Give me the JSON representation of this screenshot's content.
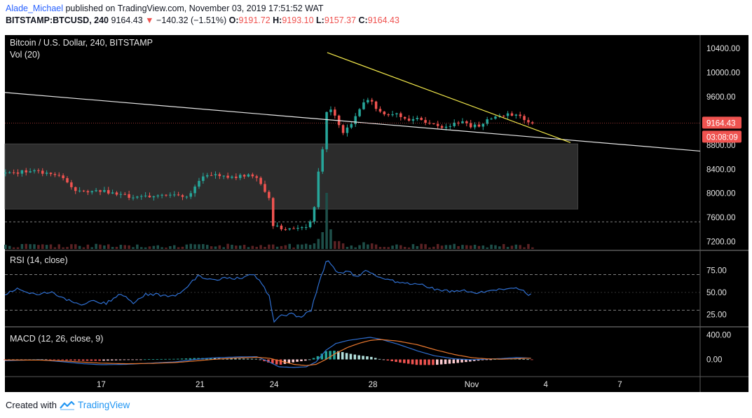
{
  "header": {
    "author": "Alade_Michael",
    "published_text": "published on TradingView.com, November 03, 2019 17:51:52 WAT",
    "symbol": "BITSTAMP:BTCUSD, 240",
    "last": "9164.43",
    "change_arrow": "▼",
    "change": "−140.32 (−1.51%)",
    "o_label": "O:",
    "o_value": "9191.72",
    "h_label": "H:",
    "h_value": "9193.10",
    "l_label": "L:",
    "l_value": "9157.37",
    "c_label": "C:",
    "c_value": "9164.43"
  },
  "chart_data": {
    "type": "candlestick",
    "title": "Bitcoin / U.S. Dollar, 240, BITSTAMP",
    "volume_label": "Vol (20)",
    "y_ticks": [
      "10400.00",
      "10000.00",
      "9600.00",
      "8800.00",
      "8400.00",
      "8000.00",
      "7600.00",
      "7200.00"
    ],
    "price_tick_values": [
      10400,
      10000,
      9600,
      8800,
      8400,
      8000,
      7600,
      7200
    ],
    "price_range": [
      7080,
      10620
    ],
    "last_price_label": "9164.43",
    "countdown_label": "03:08:09",
    "x_ticks": [
      "17",
      "21",
      "24",
      "28",
      "Nov",
      "4",
      "7"
    ],
    "x_tick_days": [
      17,
      21,
      24,
      28,
      32,
      35,
      38
    ],
    "x_range_days": [
      13.1,
      41.25
    ],
    "candle_days_start": 13.125,
    "candle_interval_days": 0.1667,
    "anchors": [
      [
        13.1,
        8330
      ],
      [
        14.2,
        8370
      ],
      [
        15.3,
        8280
      ],
      [
        16.0,
        8040
      ],
      [
        17.0,
        8040
      ],
      [
        18.2,
        7940
      ],
      [
        18.9,
        7950
      ],
      [
        19.8,
        7990
      ],
      [
        20.5,
        7950
      ],
      [
        21.0,
        8250
      ],
      [
        21.6,
        8300
      ],
      [
        22.4,
        8270
      ],
      [
        23.0,
        8300
      ],
      [
        23.3,
        8280
      ],
      [
        23.6,
        8040
      ],
      [
        23.8,
        7940
      ],
      [
        23.95,
        7480
      ],
      [
        24.3,
        7430
      ],
      [
        24.8,
        7420
      ],
      [
        25.4,
        7460
      ],
      [
        25.6,
        7690
      ],
      [
        25.8,
        8380
      ],
      [
        25.95,
        8700
      ],
      [
        26.05,
        8800
      ],
      [
        26.15,
        9520
      ],
      [
        26.3,
        9360
      ],
      [
        26.55,
        9250
      ],
      [
        26.75,
        9000
      ],
      [
        27.1,
        9120
      ],
      [
        27.6,
        9500
      ],
      [
        27.9,
        9550
      ],
      [
        28.1,
        9400
      ],
      [
        28.5,
        9280
      ],
      [
        29.0,
        9300
      ],
      [
        29.4,
        9210
      ],
      [
        29.8,
        9270
      ],
      [
        30.2,
        9140
      ],
      [
        30.6,
        9120
      ],
      [
        31.0,
        9100
      ],
      [
        31.3,
        9150
      ],
      [
        31.6,
        9200
      ],
      [
        31.9,
        9100
      ],
      [
        32.3,
        9130
      ],
      [
        32.6,
        9200
      ],
      [
        33.0,
        9260
      ],
      [
        33.5,
        9320
      ],
      [
        34.0,
        9290
      ],
      [
        34.2,
        9200
      ],
      [
        34.5,
        9160
      ]
    ],
    "volume": {
      "base": 6,
      "spikes": [
        [
          23.95,
          8
        ],
        [
          24.0,
          5
        ],
        [
          24.2,
          4
        ],
        [
          25.6,
          10
        ],
        [
          25.8,
          18
        ],
        [
          25.95,
          30
        ],
        [
          26.05,
          28
        ],
        [
          26.15,
          100
        ],
        [
          26.3,
          35
        ],
        [
          26.55,
          14
        ],
        [
          26.75,
          10
        ],
        [
          27.6,
          12
        ],
        [
          27.9,
          10
        ],
        [
          28.1,
          8
        ]
      ]
    },
    "support_zone": {
      "x_range_days": [
        13.1,
        36.3
      ],
      "price_range": [
        7740,
        8820
      ]
    },
    "dashed_level": 7530,
    "long_trendline": {
      "start": [
        13.1,
        9670
      ],
      "end": [
        41.25,
        8700
      ]
    },
    "descending_trendline": {
      "start": [
        26.15,
        10330
      ],
      "end": [
        36.0,
        8840
      ]
    },
    "rsi": {
      "label": "RSI (14, close)",
      "ticks": [
        "75.00",
        "50.00",
        "25.00"
      ],
      "tick_values": [
        75,
        50,
        25
      ],
      "range": [
        12,
        95
      ],
      "upper": 70,
      "lower": 30,
      "anchors": [
        [
          13.1,
          47
        ],
        [
          13.6,
          55
        ],
        [
          14.3,
          48
        ],
        [
          15.0,
          50
        ],
        [
          15.5,
          43
        ],
        [
          16.2,
          36
        ],
        [
          16.6,
          40
        ],
        [
          17.2,
          38
        ],
        [
          17.8,
          48
        ],
        [
          18.3,
          38
        ],
        [
          18.8,
          48
        ],
        [
          19.5,
          47
        ],
        [
          20.0,
          45
        ],
        [
          20.4,
          55
        ],
        [
          20.9,
          68
        ],
        [
          21.5,
          64
        ],
        [
          22.0,
          66
        ],
        [
          22.6,
          66
        ],
        [
          23.2,
          70
        ],
        [
          23.5,
          60
        ],
        [
          23.8,
          45
        ],
        [
          24.0,
          18
        ],
        [
          24.3,
          24
        ],
        [
          24.7,
          26
        ],
        [
          25.1,
          22
        ],
        [
          25.5,
          30
        ],
        [
          25.7,
          50
        ],
        [
          25.9,
          68
        ],
        [
          26.15,
          88
        ],
        [
          26.35,
          80
        ],
        [
          26.6,
          72
        ],
        [
          27.0,
          74
        ],
        [
          27.3,
          68
        ],
        [
          27.7,
          74
        ],
        [
          28.2,
          68
        ],
        [
          28.6,
          65
        ],
        [
          29.2,
          60
        ],
        [
          29.8,
          60
        ],
        [
          30.3,
          56
        ],
        [
          30.7,
          52
        ],
        [
          31.2,
          51
        ],
        [
          31.6,
          52
        ],
        [
          32.2,
          49
        ],
        [
          32.7,
          52
        ],
        [
          33.2,
          53
        ],
        [
          33.6,
          56
        ],
        [
          34.0,
          54
        ],
        [
          34.3,
          48
        ],
        [
          34.5,
          47
        ]
      ]
    },
    "macd": {
      "label": "MACD (12, 26, close, 9)",
      "ticks": [
        "400.00",
        "0.00"
      ],
      "tick_values": [
        400,
        0
      ],
      "range": [
        -280,
        520
      ],
      "macd_anchors": [
        [
          13.1,
          -20
        ],
        [
          14.5,
          -5
        ],
        [
          15.5,
          -40
        ],
        [
          16.3,
          -70
        ],
        [
          17.0,
          -85
        ],
        [
          18.0,
          -80
        ],
        [
          19.0,
          -60
        ],
        [
          20.0,
          -40
        ],
        [
          20.8,
          0
        ],
        [
          21.5,
          25
        ],
        [
          22.5,
          40
        ],
        [
          23.3,
          45
        ],
        [
          23.8,
          -40
        ],
        [
          24.2,
          -120
        ],
        [
          24.8,
          -130
        ],
        [
          25.3,
          -120
        ],
        [
          25.7,
          -40
        ],
        [
          26.1,
          150
        ],
        [
          26.5,
          260
        ],
        [
          27.0,
          310
        ],
        [
          27.5,
          340
        ],
        [
          27.9,
          360
        ],
        [
          28.3,
          330
        ],
        [
          29.0,
          250
        ],
        [
          29.8,
          140
        ],
        [
          30.5,
          60
        ],
        [
          31.3,
          10
        ],
        [
          32.0,
          -5
        ],
        [
          32.6,
          5
        ],
        [
          33.2,
          15
        ],
        [
          33.8,
          30
        ],
        [
          34.2,
          25
        ],
        [
          34.5,
          15
        ]
      ],
      "signal_anchors": [
        [
          13.1,
          -10
        ],
        [
          14.5,
          -10
        ],
        [
          15.5,
          -25
        ],
        [
          16.3,
          -45
        ],
        [
          17.0,
          -60
        ],
        [
          18.0,
          -70
        ],
        [
          19.0,
          -65
        ],
        [
          20.0,
          -50
        ],
        [
          20.8,
          -25
        ],
        [
          21.5,
          0
        ],
        [
          22.5,
          25
        ],
        [
          23.3,
          35
        ],
        [
          23.8,
          20
        ],
        [
          24.2,
          -20
        ],
        [
          24.8,
          -80
        ],
        [
          25.3,
          -100
        ],
        [
          25.7,
          -80
        ],
        [
          26.1,
          0
        ],
        [
          26.5,
          100
        ],
        [
          27.0,
          200
        ],
        [
          27.5,
          270
        ],
        [
          27.9,
          310
        ],
        [
          28.3,
          325
        ],
        [
          29.0,
          300
        ],
        [
          29.8,
          240
        ],
        [
          30.5,
          160
        ],
        [
          31.3,
          80
        ],
        [
          32.0,
          30
        ],
        [
          32.6,
          10
        ],
        [
          33.2,
          5
        ],
        [
          33.8,
          12
        ],
        [
          34.2,
          20
        ],
        [
          34.5,
          20
        ]
      ]
    },
    "colors": {
      "background": "#000000",
      "up": "#26a69a",
      "down": "#ef5350",
      "vol_up": "#1e4f49",
      "vol_down": "#5b2224",
      "trendline_long": "#e8e8e8",
      "trendline_desc": "#f2e84b",
      "zone": "#2c2c2c",
      "rsi": "#2f6fd1",
      "macd": "#2f6fd1",
      "signal": "#e8772e",
      "hist_pos_dark": "#26a69a",
      "hist_pos_light": "#b2dfdb",
      "hist_neg_dark": "#ef5350",
      "hist_neg_light": "#ffcdd2",
      "text": "#e6e6e6",
      "grid_dash": "#aaaaaa"
    }
  },
  "footer": {
    "created_with": "Created with",
    "brand": "TradingView"
  }
}
